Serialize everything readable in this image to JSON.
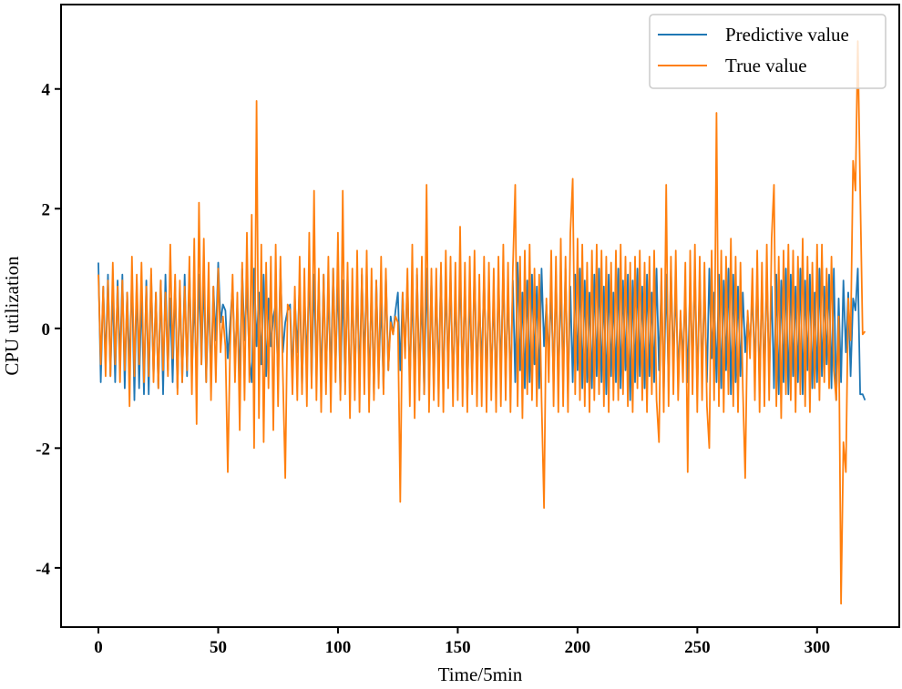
{
  "chart_data": {
    "type": "line",
    "title": "",
    "xlabel": "Time/5min",
    "ylabel": "CPU utilization",
    "xlim": [
      -15.6,
      334.3
    ],
    "ylim": [
      -4.99,
      5.41
    ],
    "xticks": [
      0,
      50,
      100,
      150,
      200,
      250,
      300
    ],
    "yticks": [
      4,
      2,
      0,
      -2,
      -4
    ],
    "xtick_labels": [
      "0",
      "50",
      "100",
      "150",
      "200",
      "250",
      "300"
    ],
    "ytick_labels": [
      "4",
      "2",
      "0",
      "-2",
      "-4"
    ],
    "grid": false,
    "legend_position": "top-right",
    "series": [
      {
        "name": "Predictive value",
        "color": "#1f77b4",
        "values": [
          1.1,
          -0.9,
          0.7,
          -0.6,
          0.9,
          -0.8,
          0.7,
          -0.9,
          0.8,
          -0.6,
          0.9,
          -1.0,
          0.6,
          -0.7,
          0.9,
          -1.2,
          0.8,
          -1.0,
          0.6,
          -1.1,
          0.8,
          -1.1,
          0.9,
          -0.8,
          0.6,
          -1.0,
          0.8,
          -1.1,
          0.9,
          -0.7,
          0.5,
          -0.9,
          0.8,
          -1.0,
          0.7,
          -0.9,
          0.9,
          -0.8,
          1.0,
          -0.8,
          0.6,
          -0.9,
          0.9,
          -0.6,
          0.9,
          -0.9,
          0.6,
          -0.8,
          0.7,
          -0.2,
          1.1,
          0.1,
          0.4,
          0.3,
          -0.5,
          0.1,
          0.7,
          -0.6,
          0.4,
          -0.9,
          1.0,
          -0.2,
          0.7,
          -0.5,
          -0.9,
          1.0,
          -0.3,
          0.6,
          -0.6,
          0.9,
          -0.8,
          0.5,
          -0.3,
          0.2,
          0.4,
          -0.8,
          1.0,
          -0.4,
          0.1,
          0.3,
          0.4,
          -0.8,
          0.5,
          -0.4,
          0.8,
          -1.0,
          0.6,
          -0.6,
          1.0,
          -0.9,
          0.9,
          -0.8,
          0.8,
          -1.0,
          0.9,
          -0.9,
          0.7,
          -0.8,
          1.0,
          -0.7,
          0.9,
          -1.1,
          0.8,
          -0.9,
          0.9,
          -1.2,
          0.7,
          -0.9,
          0.8,
          -0.9,
          0.9,
          -0.6,
          1.0,
          -1.0,
          0.7,
          -1.1,
          0.8,
          -0.8,
          0.5,
          -1.0,
          0.9,
          -0.7,
          0.2,
          -0.1,
          0.3,
          0.6,
          -0.7,
          0.6,
          -0.4,
          0.8,
          -0.9,
          0.7,
          -1.0,
          0.9,
          -0.8,
          0.6,
          -1.1,
          1.0,
          -0.9,
          0.8,
          -1.0,
          0.7,
          -0.9,
          1.0,
          -1.1,
          0.8,
          -0.7,
          0.9,
          -1.0,
          0.6,
          -0.8,
          1.0,
          -0.9,
          0.8,
          -1.2,
          0.7,
          -0.9,
          1.0,
          -0.8,
          0.5,
          -0.7,
          0.9,
          -1.0,
          0.8,
          -0.9,
          0.6,
          -1.1,
          0.9,
          -0.8,
          1.0,
          -0.9,
          0.7,
          -1.0,
          0.8,
          -0.9,
          1.1,
          -0.7,
          0.6,
          -1.0,
          0.8,
          -0.9,
          0.9,
          -0.6,
          0.7,
          -1.0,
          1.0,
          -0.3,
          0.4,
          -0.5,
          0.6,
          -0.9,
          0.9,
          -1.0,
          0.8,
          -0.8,
          1.0,
          -1.1,
          0.7,
          -0.9,
          0.9,
          -0.7,
          1.0,
          -1.0,
          0.8,
          -0.9,
          0.6,
          -1.0,
          0.9,
          -0.8,
          1.0,
          -0.9,
          0.7,
          -1.1,
          0.9,
          -0.8,
          0.6,
          -0.9,
          1.0,
          -1.0,
          0.8,
          -0.7,
          0.9,
          -1.2,
          0.8,
          -0.9,
          1.0,
          -0.8,
          0.7,
          -1.0,
          0.9,
          -0.8,
          0.6,
          -0.9,
          1.0,
          -0.7,
          0.8,
          -1.1,
          0.9,
          -0.9,
          1.0,
          -0.6,
          0.7,
          -0.8,
          0.2,
          -0.5,
          0.6,
          -0.9,
          0.8,
          -0.7,
          1.0,
          -1.0,
          0.9,
          -0.8,
          0.7,
          -0.9,
          1.0,
          -0.5,
          0.6,
          -0.9,
          0.9,
          -1.0,
          0.8,
          -0.7,
          1.0,
          -1.1,
          0.9,
          -0.9,
          0.7,
          -0.8,
          0.6,
          -0.4,
          0.2,
          -0.3,
          0.6,
          -0.7,
          0.9,
          -1.0,
          0.8,
          -0.9,
          1.0,
          -0.8,
          0.7,
          -1.0,
          0.9,
          -1.1,
          0.8,
          -0.9,
          1.0,
          -1.1,
          0.9,
          -0.8,
          0.7,
          -0.9,
          1.0,
          -1.1,
          0.8,
          -0.7,
          0.9,
          -1.0,
          0.6,
          -0.9,
          1.0,
          -0.8,
          0.7,
          -0.6,
          0.9,
          -1.0,
          1.0,
          -1.2,
          0.5,
          -0.9,
          0.8,
          -0.4,
          0.6,
          -0.8,
          0.5,
          0.3,
          1.0,
          -1.1,
          -1.1,
          -1.2
        ]
      },
      {
        "name": "True value",
        "color": "#ff7f0e",
        "values": [
          0.9,
          -0.6,
          0.7,
          -0.8,
          0.8,
          -0.8,
          1.1,
          -0.6,
          0.7,
          -0.9,
          0.8,
          -0.7,
          0.6,
          -1.3,
          1.2,
          -0.8,
          0.9,
          -0.6,
          1.1,
          -0.9,
          0.7,
          -0.8,
          1.0,
          -0.9,
          0.6,
          -1.0,
          0.8,
          -0.7,
          0.6,
          -0.8,
          1.4,
          -0.5,
          0.9,
          -1.1,
          0.8,
          -0.9,
          0.7,
          -0.7,
          1.2,
          -1.1,
          1.5,
          -1.6,
          2.1,
          -0.6,
          1.5,
          -0.9,
          1.1,
          -1.2,
          0.7,
          -0.9,
          1.0,
          -0.4,
          0.2,
          -0.3,
          -2.4,
          -0.3,
          0.9,
          -0.9,
          0.6,
          -1.7,
          1.1,
          -1.2,
          1.6,
          -0.9,
          1.9,
          -2.0,
          3.8,
          -1.5,
          1.4,
          -1.9,
          1.1,
          -1.0,
          1.2,
          -1.7,
          1.4,
          -1.3,
          1.2,
          -0.8,
          -2.5,
          0.4,
          0.3,
          -1.1,
          0.7,
          -1.2,
          1.2,
          -1.1,
          1.0,
          -1.3,
          1.6,
          -1.0,
          2.3,
          -1.2,
          1.0,
          -1.4,
          0.9,
          -1.1,
          1.2,
          -1.4,
          1.0,
          -0.9,
          1.6,
          -1.2,
          2.3,
          -1.1,
          1.1,
          -1.5,
          1.0,
          -1.2,
          1.3,
          -1.4,
          1.0,
          -1.1,
          1.3,
          -1.4,
          1.0,
          -1.2,
          0.8,
          -1.0,
          1.2,
          -1.1,
          1.0,
          -0.7,
          0.1,
          -0.1,
          0.2,
          0.1,
          -2.9,
          0.6,
          -0.5,
          1.0,
          -1.3,
          1.4,
          -1.5,
          1.0,
          -1.2,
          1.2,
          -1.1,
          2.4,
          -1.4,
          1.0,
          -1.2,
          1.0,
          -1.3,
          1.1,
          -1.4,
          1.3,
          -1.0,
          1.2,
          -1.3,
          1.1,
          -1.2,
          1.7,
          -1.3,
          1.1,
          -1.4,
          1.2,
          -1.1,
          1.3,
          -1.3,
          0.9,
          -1.3,
          1.2,
          -1.4,
          1.1,
          -1.2,
          1.0,
          -1.4,
          1.2,
          -1.3,
          1.4,
          -1.2,
          1.1,
          -1.4,
          1.0,
          2.4,
          -1.3,
          1.2,
          -1.5,
          1.3,
          -1.1,
          1.4,
          -1.2,
          1.0,
          -1.3,
          0.9,
          -1.2,
          -3.0,
          0.5,
          -0.9,
          1.3,
          -1.3,
          1.2,
          -1.4,
          1.5,
          -1.3,
          1.2,
          -1.4,
          1.6,
          2.5,
          -1.1,
          1.5,
          -1.2,
          1.4,
          -1.3,
          1.1,
          -1.4,
          1.3,
          -1.2,
          1.4,
          -1.1,
          1.3,
          -1.3,
          1.2,
          -1.4,
          1.1,
          -1.2,
          1.3,
          -1.2,
          1.4,
          -1.1,
          1.2,
          -1.3,
          1.1,
          -1.4,
          1.2,
          -1.0,
          1.3,
          -1.2,
          1.1,
          -1.4,
          1.2,
          -1.1,
          1.3,
          -1.2,
          -1.9,
          1.0,
          -1.4,
          2.4,
          -1.3,
          1.2,
          -1.1,
          1.3,
          -1.2,
          0.3,
          -0.9,
          1.1,
          -2.4,
          1.3,
          -1.1,
          1.4,
          -1.4,
          1.2,
          -1.2,
          1.1,
          -1.3,
          -2.0,
          1.3,
          -1.2,
          3.6,
          -1.3,
          1.3,
          -1.4,
          1.2,
          -1.1,
          1.5,
          -1.3,
          1.2,
          -1.4,
          1.1,
          -1.0,
          -2.5,
          0.3,
          -0.5,
          1.0,
          -1.2,
          1.3,
          -1.4,
          1.1,
          -1.3,
          1.4,
          -1.2,
          1.5,
          2.4,
          -1.3,
          1.2,
          -1.5,
          1.3,
          -1.1,
          1.4,
          -1.2,
          1.3,
          -1.4,
          1.2,
          -1.1,
          1.5,
          -1.3,
          1.2,
          -1.4,
          1.1,
          -1.0,
          1.4,
          -1.2,
          1.4,
          -0.9,
          1.0,
          -1.0,
          1.2,
          -0.7,
          -1.2,
          0.2,
          -4.6,
          -1.9,
          -2.4,
          0.5,
          -0.2,
          2.8,
          2.3,
          4.8,
          2.3,
          -0.1,
          -0.05
        ]
      }
    ]
  }
}
